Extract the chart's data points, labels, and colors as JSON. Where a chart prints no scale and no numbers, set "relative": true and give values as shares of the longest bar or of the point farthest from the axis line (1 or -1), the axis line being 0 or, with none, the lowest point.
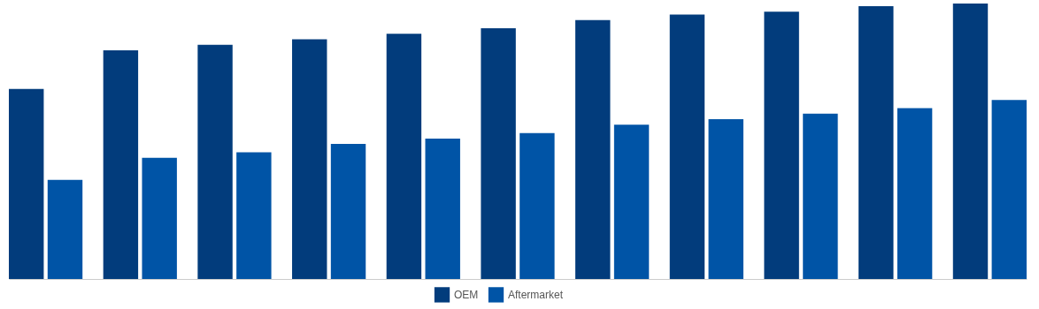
{
  "chart_data": {
    "type": "bar",
    "relative": true,
    "categories": [
      null,
      null,
      null,
      null,
      null,
      null,
      null,
      null,
      null,
      null,
      null
    ],
    "series": [
      {
        "name": "OEM",
        "color": "#023c7c",
        "values": [
          0.69,
          0.83,
          0.85,
          0.87,
          0.89,
          0.91,
          0.94,
          0.96,
          0.97,
          0.99,
          1
        ]
      },
      {
        "name": "Aftermarket",
        "color": "#0054a6",
        "values": [
          0.36,
          0.44,
          0.46,
          0.49,
          0.51,
          0.53,
          0.56,
          0.58,
          0.6,
          0.62,
          0.65
        ]
      }
    ],
    "legend": "bottom",
    "grid": false
  }
}
